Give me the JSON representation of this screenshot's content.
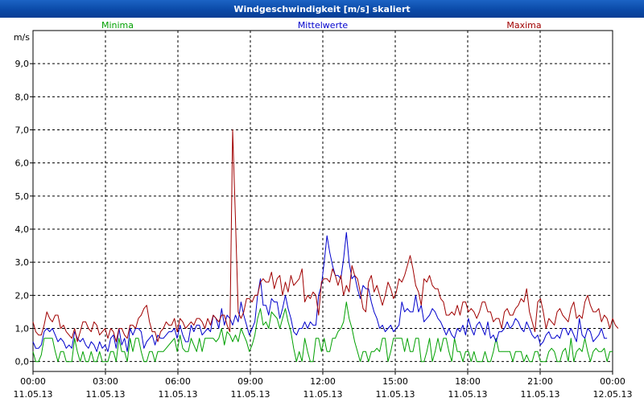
{
  "window": {
    "title": "Windgeschwindigkeit [m/s] skaliert"
  },
  "colors": {
    "minima": "#00a000",
    "mittel": "#0000cc",
    "maxima": "#a00000",
    "titlebar": "#0b4aa8"
  },
  "chart_data": {
    "type": "line",
    "title": "Windgeschwindigkeit [m/s] skaliert",
    "ylabel": "m/s",
    "ylim": [
      -0.3,
      10.0
    ],
    "yticks": [
      0,
      1,
      2,
      3,
      4,
      5,
      6,
      7,
      8,
      9
    ],
    "ytick_labels": [
      "0,0",
      "1,0",
      "2,0",
      "3,0",
      "4,0",
      "5,0",
      "6,0",
      "7,0",
      "8,0",
      "9,0"
    ],
    "xlim_hours": [
      0,
      24
    ],
    "x_step_hours": 0.1667,
    "xticks": [
      {
        "hour": 0,
        "time": "00:00",
        "date": "11.05.13"
      },
      {
        "hour": 3,
        "time": "03:00",
        "date": "11.05.13"
      },
      {
        "hour": 6,
        "time": "06:00",
        "date": "11.05.13"
      },
      {
        "hour": 9,
        "time": "09:00",
        "date": "11.05.13"
      },
      {
        "hour": 12,
        "time": "12:00",
        "date": "11.05.13"
      },
      {
        "hour": 15,
        "time": "15:00",
        "date": "11.05.13"
      },
      {
        "hour": 18,
        "time": "18:00",
        "date": "11.05.13"
      },
      {
        "hour": 21,
        "time": "21:00",
        "date": "11.05.13"
      },
      {
        "hour": 24,
        "time": "00:00",
        "date": "12.05.13"
      }
    ],
    "grid": true,
    "legend": "top",
    "series": [
      {
        "name": "Minima",
        "color": "#00a000",
        "values": [
          0.3,
          0.0,
          0.0,
          0.2,
          0.7,
          0.7,
          0.7,
          0.7,
          0.3,
          0.0,
          0.3,
          0.3,
          0.0,
          0.0,
          0.0,
          0.7,
          0.3,
          0.0,
          0.3,
          0.0,
          0.0,
          0.3,
          0.0,
          0.0,
          0.3,
          0.0,
          0.0,
          0.0,
          0.3,
          0.3,
          0.0,
          0.7,
          0.3,
          0.3,
          0.0,
          0.7,
          0.3,
          0.7,
          0.7,
          0.3,
          0.0,
          0.0,
          0.3,
          0.3,
          0.0,
          0.3,
          0.3,
          0.3,
          0.4,
          0.5,
          0.6,
          0.7,
          0.3,
          0.8,
          0.4,
          0.3,
          0.3,
          0.7,
          0.5,
          0.3,
          0.7,
          0.3,
          0.7,
          0.7,
          0.7,
          0.7,
          0.6,
          0.7,
          1.0,
          0.5,
          0.9,
          0.8,
          0.6,
          0.8,
          0.6,
          1.0,
          0.8,
          0.6,
          0.3,
          0.5,
          0.8,
          1.3,
          1.6,
          1.1,
          1.2,
          1.0,
          1.5,
          1.4,
          1.3,
          1.0,
          1.3,
          1.6,
          1.2,
          0.9,
          0.4,
          0.0,
          0.3,
          0.0,
          0.7,
          0.3,
          0.0,
          0.0,
          0.7,
          0.7,
          0.3,
          0.7,
          0.3,
          0.3,
          0.7,
          0.7,
          0.9,
          1.0,
          1.2,
          1.8,
          1.3,
          1.0,
          0.6,
          0.3,
          0.0,
          0.3,
          0.3,
          0.0,
          0.3,
          0.3,
          0.4,
          0.3,
          0.7,
          0.7,
          0.0,
          0.3,
          0.7,
          0.7,
          0.7,
          0.7,
          0.3,
          0.7,
          0.3,
          0.3,
          0.7,
          0.7,
          0.0,
          0.0,
          0.3,
          0.7,
          0.0,
          0.3,
          0.7,
          0.3,
          0.7,
          0.7,
          0.3,
          0.0,
          0.7,
          0.3,
          0.3,
          0.0,
          0.3,
          0.3,
          0.0,
          0.3,
          0.0,
          0.0,
          0.0,
          0.3,
          0.0,
          0.0,
          0.3,
          0.7,
          0.3,
          0.3,
          0.3,
          0.3,
          0.3,
          0.0,
          0.3,
          0.3,
          0.3,
          0.0,
          0.2,
          0.0,
          0.0,
          0.3,
          0.3,
          0.0,
          0.0,
          0.0,
          0.3,
          0.4,
          0.3,
          0.0,
          0.0,
          0.3,
          0.4,
          0.0,
          0.7,
          0.0,
          0.3,
          0.4,
          0.3,
          0.7,
          0.3,
          0.0,
          0.3,
          0.4,
          0.3,
          0.3,
          0.4,
          0.0,
          0.3,
          0.3
        ]
      },
      {
        "name": "Mittelwerte",
        "color": "#0000cc",
        "values": [
          0.6,
          0.4,
          0.4,
          0.5,
          0.9,
          1.0,
          0.9,
          1.0,
          0.8,
          0.6,
          0.7,
          0.6,
          0.4,
          0.5,
          0.4,
          0.9,
          0.7,
          0.6,
          0.7,
          0.5,
          0.4,
          0.6,
          0.5,
          0.3,
          0.6,
          0.4,
          0.5,
          0.3,
          0.7,
          0.8,
          0.4,
          1.0,
          0.5,
          0.7,
          0.3,
          1.0,
          0.8,
          1.0,
          1.0,
          0.9,
          0.4,
          0.6,
          0.7,
          0.8,
          0.5,
          0.8,
          0.7,
          0.7,
          0.8,
          0.9,
          0.9,
          1.0,
          0.7,
          1.1,
          0.8,
          0.6,
          0.6,
          1.1,
          0.9,
          1.1,
          1.1,
          0.8,
          0.9,
          1.0,
          0.9,
          1.4,
          1.3,
          1.0,
          1.6,
          1.1,
          1.4,
          1.3,
          1.1,
          1.4,
          1.2,
          1.8,
          1.4,
          1.1,
          0.8,
          1.0,
          1.2,
          2.0,
          2.5,
          1.7,
          1.7,
          1.4,
          1.9,
          1.8,
          1.8,
          1.3,
          1.6,
          2.0,
          1.6,
          1.3,
          0.9,
          0.8,
          1.0,
          1.0,
          1.2,
          1.0,
          1.2,
          1.1,
          1.1,
          2.0,
          2.3,
          3.0,
          3.8,
          3.3,
          2.9,
          2.6,
          2.6,
          2.5,
          3.1,
          3.9,
          3.0,
          2.5,
          2.6,
          2.2,
          1.9,
          2.3,
          2.2,
          2.2,
          1.8,
          1.5,
          1.3,
          1.0,
          1.1,
          0.9,
          1.0,
          1.1,
          0.9,
          1.0,
          1.1,
          1.8,
          1.5,
          1.6,
          1.5,
          1.5,
          2.0,
          1.5,
          1.7,
          1.2,
          1.3,
          1.4,
          1.6,
          1.5,
          1.3,
          1.2,
          1.0,
          0.8,
          1.0,
          0.8,
          0.7,
          1.0,
          0.9,
          1.1,
          0.8,
          1.3,
          1.0,
          0.8,
          1.1,
          1.2,
          1.0,
          0.8,
          1.2,
          0.7,
          0.8,
          0.6,
          0.9,
          0.9,
          1.0,
          1.2,
          1.0,
          1.1,
          1.3,
          1.2,
          1.0,
          0.9,
          1.2,
          1.0,
          0.8,
          0.7,
          0.8,
          0.5,
          0.6,
          0.8,
          0.9,
          0.7,
          0.7,
          0.8,
          0.7,
          1.0,
          1.0,
          0.8,
          1.0,
          0.8,
          0.6,
          1.3,
          0.8,
          0.7,
          1.0,
          0.9,
          0.6,
          0.7,
          0.8,
          1.0,
          0.7,
          0.7
        ]
      },
      {
        "name": "Maxima",
        "color": "#a00000",
        "values": [
          1.2,
          0.9,
          0.8,
          0.8,
          1.1,
          1.5,
          1.3,
          1.2,
          1.4,
          1.4,
          1.0,
          1.1,
          0.9,
          0.8,
          0.7,
          1.0,
          0.6,
          0.9,
          1.2,
          1.2,
          1.0,
          0.9,
          1.2,
          1.1,
          0.8,
          0.9,
          1.0,
          0.7,
          1.0,
          0.9,
          0.6,
          1.0,
          1.0,
          0.8,
          0.7,
          1.1,
          1.1,
          1.0,
          1.3,
          1.4,
          1.6,
          1.7,
          1.2,
          0.9,
          0.9,
          0.6,
          0.9,
          1.0,
          1.2,
          1.1,
          1.1,
          1.3,
          0.9,
          1.3,
          1.2,
          1.0,
          1.1,
          1.2,
          1.1,
          1.3,
          1.3,
          1.2,
          1.0,
          1.3,
          1.1,
          1.4,
          1.3,
          1.2,
          1.4,
          1.4,
          1.1,
          0.9,
          7.0,
          4.3,
          1.5,
          1.3,
          1.5,
          1.9,
          1.9,
          1.8,
          2.0,
          2.0,
          2.4,
          2.5,
          2.4,
          2.4,
          2.7,
          2.2,
          2.5,
          2.6,
          2.0,
          2.4,
          2.1,
          2.6,
          2.3,
          2.4,
          2.5,
          2.8,
          1.8,
          2.0,
          1.9,
          2.1,
          2.0,
          1.4,
          2.4,
          2.5,
          2.5,
          2.4,
          2.8,
          2.6,
          2.3,
          2.6,
          2.0,
          2.3,
          2.1,
          2.9,
          2.6,
          2.5,
          2.1,
          1.6,
          1.5,
          2.4,
          2.6,
          2.1,
          2.3,
          2.0,
          1.7,
          2.0,
          2.4,
          2.2,
          1.9,
          2.1,
          2.5,
          2.4,
          2.6,
          2.9,
          3.2,
          2.8,
          2.3,
          2.1,
          1.7,
          2.5,
          2.4,
          2.6,
          2.3,
          2.2,
          2.2,
          1.9,
          1.8,
          1.4,
          1.4,
          1.5,
          1.4,
          1.7,
          1.4,
          1.8,
          1.8,
          1.5,
          1.6,
          1.5,
          1.3,
          1.5,
          1.8,
          1.8,
          1.5,
          1.5,
          1.2,
          1.3,
          1.3,
          1.0,
          1.5,
          1.6,
          1.4,
          1.4,
          1.6,
          1.7,
          1.9,
          1.8,
          2.2,
          1.5,
          1.2,
          0.9,
          1.8,
          1.9,
          1.5,
          1.0,
          1.3,
          1.2,
          1.1,
          1.5,
          1.6,
          1.4,
          1.3,
          1.2,
          1.6,
          1.8,
          1.3,
          1.4,
          1.3,
          1.8,
          2.0,
          1.7,
          1.5,
          1.5,
          1.6,
          1.2,
          1.4,
          1.3,
          1.0,
          1.3,
          1.1,
          1.0
        ]
      }
    ]
  }
}
